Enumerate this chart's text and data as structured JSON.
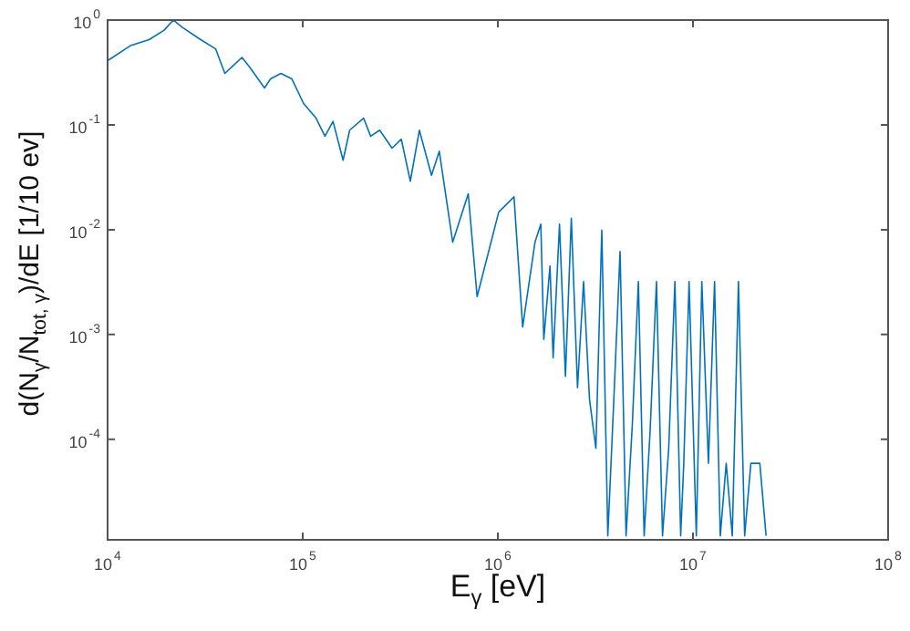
{
  "chart_data": {
    "type": "line",
    "xlabel": "E$_{γ}$ [eV]",
    "ylabel": "d(N$_{γ}$/N$_{tot, γ}$)/dE [1/10 ev]",
    "log": "xy",
    "grid": false,
    "marker": "none",
    "xlim": [
      10000,
      100000000
    ],
    "ylim": [
      1.1e-05,
      1
    ],
    "xticks": [
      {
        "value": 10000,
        "label": "10$^{4}$"
      },
      {
        "value": 100000,
        "label": "10$^{5}$"
      },
      {
        "value": 1000000,
        "label": "10$^{6}$"
      },
      {
        "value": 10000000,
        "label": "10$^{7}$"
      },
      {
        "value": 100000000,
        "label": "10$^{8}$"
      }
    ],
    "yticks": [
      {
        "value": 0.0001,
        "label": "10$^{-4}$"
      },
      {
        "value": 0.001,
        "label": "10$^{-3}$"
      },
      {
        "value": 0.01,
        "label": "10$^{-2}$"
      },
      {
        "value": 0.1,
        "label": "10$^{-1}$"
      },
      {
        "value": 1,
        "label": "10$^{0}$"
      }
    ],
    "x": [
      10000,
      13100,
      16300,
      19500,
      21700,
      24200,
      30000,
      35800,
      39900,
      48800,
      53200,
      63700,
      68400,
      77300,
      87900,
      101000,
      117000,
      130000,
      143000,
      161000,
      174000,
      205000,
      223000,
      248000,
      287000,
      320000,
      356000,
      396000,
      457000,
      501000,
      587000,
      705000,
      783000,
      1010000,
      1210000,
      1340000,
      1550000,
      1660000,
      1720000,
      1850000,
      1920000,
      2070000,
      2220000,
      2380000,
      2560000,
      2750000,
      2950000,
      3180000,
      3410000,
      3660000,
      3930000,
      4230000,
      4540000,
      4890000,
      5250000,
      5620000,
      6030000,
      6500000,
      6980000,
      7510000,
      8080000,
      8650000,
      8970000,
      9550000,
      10400000,
      11100000,
      12000000,
      12900000,
      13800000,
      14800000,
      15900000,
      17100000,
      18400000,
      19800000,
      22000000,
      23700000,
      24000000
    ],
    "series": [
      {
        "color": "#0072bd",
        "values": [
          0.41,
          0.57,
          0.65,
          0.8,
          1,
          0.85,
          0.65,
          0.53,
          0.31,
          0.44,
          0.36,
          0.225,
          0.275,
          0.31,
          0.275,
          0.16,
          0.116,
          0.078,
          0.108,
          0.046,
          0.089,
          0.116,
          0.078,
          0.089,
          0.06,
          0.073,
          0.029,
          0.089,
          0.033,
          0.056,
          0.0076,
          0.022,
          0.0023,
          0.0147,
          0.0206,
          0.00118,
          0.0076,
          0.0113,
          0.0009,
          0.0045,
          0.0006,
          0.0113,
          0.0004,
          0.0129,
          0.00031,
          0.0032,
          0.00024,
          8.2e-05,
          0.0099,
          1.2e-05,
          0.00024,
          0.0062,
          1.2e-05,
          0.00014,
          0.0032,
          1.2e-05,
          0.00012,
          0.0032,
          1.2e-05,
          8.2e-05,
          0.0032,
          1.2e-05,
          5.9e-05,
          0.0032,
          1.2e-05,
          0.0032,
          5.9e-05,
          0.0032,
          1.2e-05,
          5.9e-05,
          1.2e-05,
          0.0032,
          1.2e-05,
          5.9e-05,
          5.9e-05,
          1.2e-05,
          1.2e-05
        ]
      }
    ]
  }
}
